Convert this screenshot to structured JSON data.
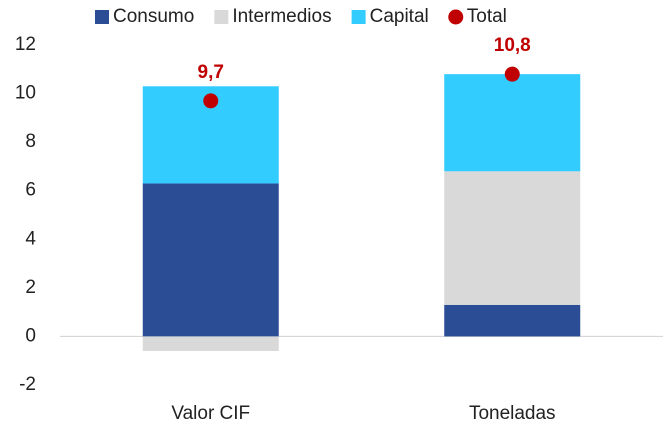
{
  "chart_data": {
    "type": "bar",
    "stacked": true,
    "categories": [
      "Valor CIF",
      "Toneladas"
    ],
    "series": [
      {
        "name": "Consumo",
        "color": "#2a4d96",
        "values": [
          6.3,
          1.3
        ]
      },
      {
        "name": "Intermedios",
        "color": "#d9d9d9",
        "values": [
          -0.6,
          5.5
        ]
      },
      {
        "name": "Capital",
        "color": "#33ccff",
        "values": [
          4.0,
          4.0
        ]
      },
      {
        "name": "Total",
        "type": "scatter",
        "color": "#c00000",
        "values": [
          9.7,
          10.8
        ],
        "value_labels": [
          "9,7",
          "10,8"
        ]
      }
    ],
    "ylim": [
      -2,
      12
    ],
    "yticks": [
      -2,
      0,
      2,
      4,
      6,
      8,
      10,
      12
    ],
    "legend": "top"
  }
}
